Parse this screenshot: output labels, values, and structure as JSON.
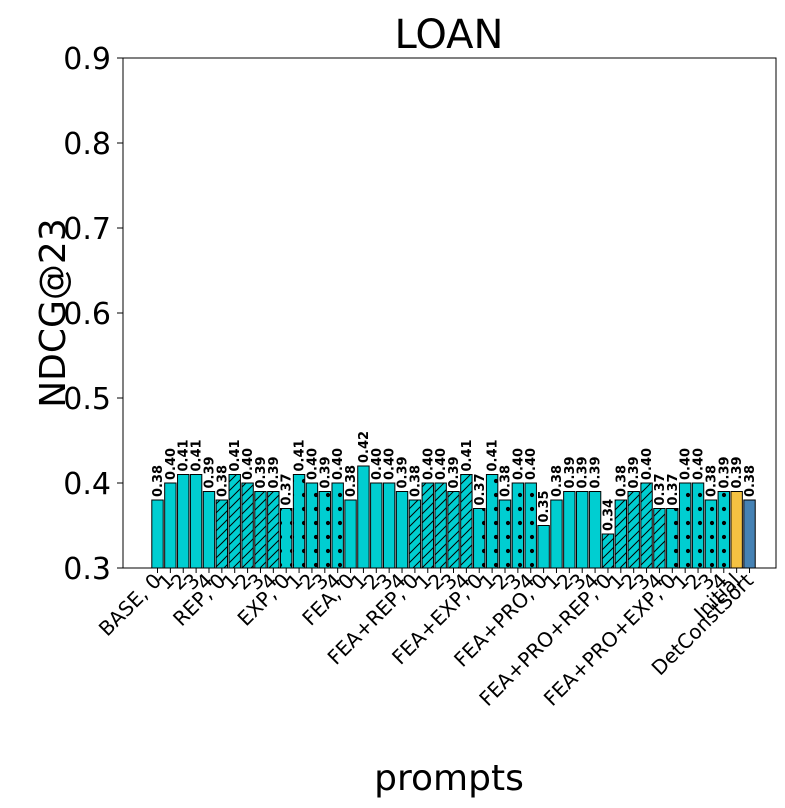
{
  "chart_data": {
    "type": "bar",
    "title": "LOAN",
    "xlabel": "prompts",
    "ylabel": "NDCG@23",
    "ylim": [
      0.3,
      0.9
    ],
    "yticks": [
      "0.3",
      "0.4",
      "0.5",
      "0.6",
      "0.7",
      "0.8",
      "0.9"
    ],
    "grid": false,
    "colors": {
      "main": "#00CED1",
      "initial": "#F5C242",
      "detconstsort": "#4682B4",
      "edge": "#000000"
    },
    "xtick_labels": [
      "BASE, 0",
      "1",
      "2",
      "3",
      "4",
      "REP, 0",
      "1",
      "2",
      "3",
      "4",
      "EXP, 0",
      "1",
      "2",
      "3",
      "4",
      "FEA, 0",
      "1",
      "2",
      "3",
      "4",
      "FEA+REP, 0",
      "1",
      "2",
      "3",
      "4",
      "FEA+EXP, 0",
      "1",
      "2",
      "3",
      "4",
      "FEA+PRO, 0",
      "1",
      "2",
      "3",
      "4",
      "FEA+PRO+REP, 0",
      "1",
      "2",
      "3",
      "4",
      "FEA+PRO+EXP, 0",
      "1",
      "2",
      "3",
      "4",
      "Initial",
      "DetConstSort"
    ],
    "values": [
      0.38,
      0.4,
      0.41,
      0.41,
      0.39,
      0.38,
      0.41,
      0.4,
      0.39,
      0.39,
      0.37,
      0.41,
      0.4,
      0.39,
      0.4,
      0.38,
      0.42,
      0.4,
      0.4,
      0.39,
      0.38,
      0.4,
      0.4,
      0.39,
      0.41,
      0.37,
      0.41,
      0.38,
      0.4,
      0.4,
      0.35,
      0.38,
      0.39,
      0.39,
      0.39,
      0.34,
      0.38,
      0.39,
      0.4,
      0.37,
      0.37,
      0.4,
      0.4,
      0.38,
      0.39,
      0.39,
      0.38
    ],
    "value_labels": [
      "0.38",
      "0.40",
      "0.41",
      "0.41",
      "0.39",
      "0.38",
      "0.41",
      "0.40",
      "0.39",
      "0.39",
      "0.37",
      "0.41",
      "0.40",
      "0.39",
      "0.40",
      "0.38",
      "0.42",
      "0.40",
      "0.40",
      "0.39",
      "0.38",
      "0.40",
      "0.40",
      "0.39",
      "0.41",
      "0.37",
      "0.41",
      "0.38",
      "0.40",
      "0.40",
      "0.35",
      "0.38",
      "0.39",
      "0.39",
      "0.39",
      "0.34",
      "0.38",
      "0.39",
      "0.40",
      "0.37",
      "0.37",
      "0.40",
      "0.40",
      "0.38",
      "0.39",
      "0.39",
      "0.38"
    ],
    "hatches": [
      "none",
      "none",
      "none",
      "none",
      "none",
      "diag",
      "diag",
      "diag",
      "diag",
      "diag",
      "dots",
      "dots",
      "dots",
      "dots",
      "dots",
      "none",
      "none",
      "none",
      "none",
      "none",
      "diag",
      "diag",
      "diag",
      "diag",
      "diag",
      "dots",
      "dots",
      "dots",
      "dots",
      "dots",
      "none",
      "none",
      "none",
      "none",
      "none",
      "diag",
      "diag",
      "diag",
      "diag",
      "diag",
      "dots",
      "dots",
      "dots",
      "dots",
      "dots",
      "none",
      "none"
    ]
  }
}
